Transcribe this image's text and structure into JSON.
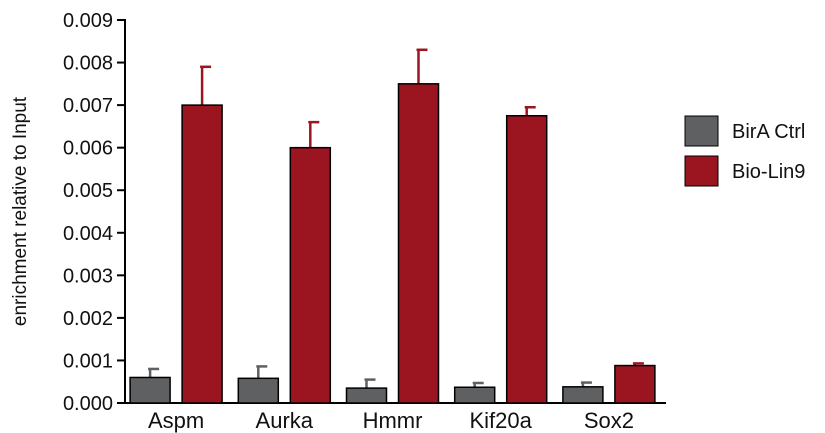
{
  "chart_data": {
    "type": "bar",
    "title": "",
    "xlabel": "",
    "ylabel": "enrichment relative to Input",
    "ylim": [
      0,
      0.009
    ],
    "yticks": [
      "0.000",
      "0.001",
      "0.002",
      "0.003",
      "0.004",
      "0.005",
      "0.006",
      "0.007",
      "0.008",
      "0.009"
    ],
    "categories": [
      "Aspm",
      "Aurka",
      "Hmmr",
      "Kif20a",
      "Sox2"
    ],
    "series": [
      {
        "name": "BirA Ctrl",
        "color": "#5f6062",
        "values": [
          0.0006,
          0.00058,
          0.00035,
          0.00037,
          0.00038
        ],
        "errors": [
          0.0002,
          0.00028,
          0.0002,
          0.0001,
          0.0001
        ]
      },
      {
        "name": "Bio-Lin9",
        "color": "#9b1520",
        "values": [
          0.007,
          0.006,
          0.0075,
          0.00675,
          0.00088
        ],
        "errors": [
          0.0009,
          0.0006,
          0.0008,
          0.0002,
          5e-05
        ]
      }
    ],
    "error_bars": "upper",
    "legend": "right",
    "grid": false
  }
}
